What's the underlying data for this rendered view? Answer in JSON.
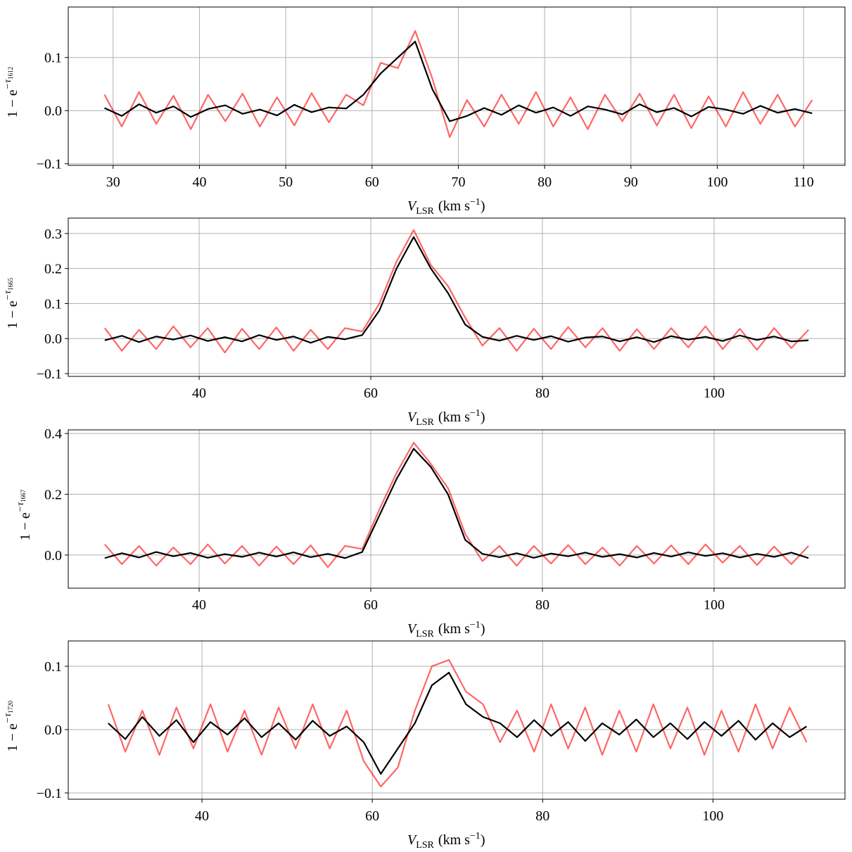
{
  "chart_data": [
    {
      "type": "line",
      "xlabel": {
        "symbol": "V",
        "subscript": "LSR",
        "unit": "(km s",
        "exponent": "−1",
        "close": ")"
      },
      "ylabel": {
        "base": "1 − e",
        "exponent": "−τ",
        "subscript": "1612"
      },
      "xlim": [
        24.8,
        114.8
      ],
      "xticks": [
        30,
        40,
        50,
        60,
        70,
        80,
        90,
        100,
        110
      ],
      "ylim": [
        -0.103,
        0.195
      ],
      "yticks": [
        {
          "value": -0.1,
          "label": "−0.1"
        },
        {
          "value": 0,
          "label": "0.0"
        },
        0.1
      ],
      "grid": true,
      "x": [
        29,
        31,
        33,
        35,
        37,
        39,
        41,
        43,
        45,
        47,
        49,
        51,
        53,
        55,
        57,
        59,
        61,
        63,
        65,
        67,
        69,
        71,
        73,
        75,
        77,
        79,
        81,
        83,
        85,
        87,
        89,
        91,
        93,
        95,
        97,
        99,
        101,
        103,
        105,
        107,
        109,
        111
      ],
      "series": [
        {
          "color": "#ff0000",
          "values": [
            0.03,
            -0.03,
            0.035,
            -0.025,
            0.028,
            -0.035,
            0.03,
            -0.02,
            0.032,
            -0.03,
            0.025,
            -0.028,
            0.033,
            -0.022,
            0.03,
            0.01,
            0.09,
            0.08,
            0.15,
            0.06,
            -0.05,
            0.02,
            -0.03,
            0.03,
            -0.025,
            0.035,
            -0.03,
            0.025,
            -0.035,
            0.03,
            -0.02,
            0.032,
            -0.028,
            0.03,
            -0.033,
            0.027,
            -0.03,
            0.035,
            -0.025,
            0.03,
            -0.03,
            0.02
          ]
        },
        {
          "color": "#000000",
          "values": [
            0.005,
            -0.01,
            0.012,
            -0.004,
            0.008,
            -0.012,
            0.003,
            0.01,
            -0.006,
            0.002,
            -0.009,
            0.011,
            -0.003,
            0.006,
            0.004,
            0.03,
            0.07,
            0.1,
            0.13,
            0.04,
            -0.02,
            -0.01,
            0.005,
            -0.008,
            0.01,
            -0.004,
            0.006,
            -0.01,
            0.008,
            0.002,
            -0.007,
            0.012,
            -0.003,
            0.005,
            -0.011,
            0.007,
            0.002,
            -0.006,
            0.009,
            -0.004,
            0.003,
            -0.005
          ]
        }
      ]
    },
    {
      "type": "line",
      "xlabel": {
        "symbol": "V",
        "subscript": "LSR",
        "unit": "(km s",
        "exponent": "−1",
        "close": ")"
      },
      "ylabel": {
        "base": "1 − e",
        "exponent": "−τ",
        "subscript": "1665"
      },
      "xlim": [
        24.75,
        115.25
      ],
      "xticks": [
        40,
        60,
        80,
        100
      ],
      "ylim": [
        -0.108,
        0.344
      ],
      "yticks": [
        {
          "value": -0.1,
          "label": "−0.1"
        },
        {
          "value": 0,
          "label": "0.0"
        },
        0.1,
        0.2,
        0.3
      ],
      "grid": true,
      "x": [
        29,
        31,
        33,
        35,
        37,
        39,
        41,
        43,
        45,
        47,
        49,
        51,
        53,
        55,
        57,
        59,
        61,
        63,
        65,
        67,
        69,
        71,
        73,
        75,
        77,
        79,
        81,
        83,
        85,
        87,
        89,
        91,
        93,
        95,
        97,
        99,
        101,
        103,
        105,
        107,
        109,
        111
      ],
      "series": [
        {
          "color": "#ff0000",
          "values": [
            0.03,
            -0.035,
            0.025,
            -0.03,
            0.035,
            -0.025,
            0.03,
            -0.04,
            0.028,
            -0.03,
            0.032,
            -0.035,
            0.025,
            -0.03,
            0.03,
            0.02,
            0.1,
            0.22,
            0.31,
            0.21,
            0.15,
            0.06,
            -0.02,
            0.03,
            -0.035,
            0.028,
            -0.03,
            0.033,
            -0.025,
            0.03,
            -0.035,
            0.027,
            -0.03,
            0.03,
            -0.025,
            0.035,
            -0.03,
            0.028,
            -0.032,
            0.03,
            -0.027,
            0.025
          ]
        },
        {
          "color": "#000000",
          "values": [
            -0.005,
            0.008,
            -0.01,
            0.006,
            -0.003,
            0.009,
            -0.007,
            0.004,
            -0.008,
            0.01,
            -0.004,
            0.006,
            -0.012,
            0.005,
            -0.002,
            0.01,
            0.08,
            0.2,
            0.29,
            0.2,
            0.13,
            0.04,
            0.005,
            -0.006,
            0.008,
            -0.004,
            0.007,
            -0.009,
            0.003,
            0.006,
            -0.008,
            0.004,
            -0.01,
            0.007,
            -0.003,
            0.005,
            -0.007,
            0.009,
            -0.004,
            0.006,
            -0.008,
            -0.005
          ]
        }
      ]
    },
    {
      "type": "line",
      "xlabel": {
        "symbol": "V",
        "subscript": "LSR",
        "unit": "(km s",
        "exponent": "−1",
        "close": ")"
      },
      "ylabel": {
        "base": "1 − e",
        "exponent": "−τ",
        "subscript": "1667"
      },
      "xlim": [
        24.75,
        115.25
      ],
      "xticks": [
        40,
        60,
        80,
        100
      ],
      "ylim": [
        -0.109,
        0.412
      ],
      "yticks": [
        {
          "value": 0,
          "label": "0.0"
        },
        {
          "value": 0.2,
          "label": "0.2"
        },
        {
          "value": 0.4,
          "label": "0.4"
        }
      ],
      "grid": true,
      "x": [
        29,
        31,
        33,
        35,
        37,
        39,
        41,
        43,
        45,
        47,
        49,
        51,
        53,
        55,
        57,
        59,
        61,
        63,
        65,
        67,
        69,
        71,
        73,
        75,
        77,
        79,
        81,
        83,
        85,
        87,
        89,
        91,
        93,
        95,
        97,
        99,
        101,
        103,
        105,
        107,
        109,
        111
      ],
      "series": [
        {
          "color": "#ff0000",
          "values": [
            0.035,
            -0.03,
            0.03,
            -0.035,
            0.025,
            -0.03,
            0.035,
            -0.028,
            0.03,
            -0.035,
            0.028,
            -0.03,
            0.032,
            -0.04,
            0.03,
            0.02,
            0.15,
            0.27,
            0.37,
            0.3,
            0.22,
            0.07,
            -0.02,
            0.03,
            -0.035,
            0.03,
            -0.028,
            0.033,
            -0.03,
            0.025,
            -0.035,
            0.03,
            -0.028,
            0.032,
            -0.03,
            0.035,
            -0.025,
            0.03,
            -0.033,
            0.028,
            -0.03,
            0.03
          ]
        },
        {
          "color": "#000000",
          "values": [
            -0.01,
            0.006,
            -0.008,
            0.01,
            -0.004,
            0.007,
            -0.009,
            0.003,
            -0.006,
            0.008,
            -0.005,
            0.009,
            -0.007,
            0.004,
            -0.01,
            0.01,
            0.13,
            0.25,
            0.35,
            0.29,
            0.2,
            0.05,
            0.004,
            -0.007,
            0.006,
            -0.009,
            0.005,
            -0.004,
            0.008,
            -0.006,
            0.003,
            -0.008,
            0.007,
            -0.005,
            0.009,
            -0.003,
            0.006,
            -0.008,
            0.004,
            -0.006,
            0.008,
            -0.01
          ]
        }
      ]
    },
    {
      "type": "line",
      "xlabel": {
        "symbol": "V",
        "subscript": "LSR",
        "unit": "(km s",
        "exponent": "−1",
        "close": ")"
      },
      "ylabel": {
        "base": "1 − e",
        "exponent": "−τ",
        "subscript": "1720"
      },
      "xlim": [
        24.3,
        115.5
      ],
      "xticks": [
        40,
        60,
        80,
        100
      ],
      "ylim": [
        -0.11,
        0.14
      ],
      "yticks": [
        {
          "value": -0.1,
          "label": "−0.1"
        },
        {
          "value": 0,
          "label": "0.0"
        },
        0.1
      ],
      "grid": true,
      "x": [
        29,
        31,
        33,
        35,
        37,
        39,
        41,
        43,
        45,
        47,
        49,
        51,
        53,
        55,
        57,
        59,
        61,
        63,
        65,
        67,
        69,
        71,
        73,
        75,
        77,
        79,
        81,
        83,
        85,
        87,
        89,
        91,
        93,
        95,
        97,
        99,
        101,
        103,
        105,
        107,
        109,
        111
      ],
      "series": [
        {
          "color": "#ff0000",
          "values": [
            0.04,
            -0.035,
            0.03,
            -0.04,
            0.035,
            -0.03,
            0.04,
            -0.035,
            0.03,
            -0.04,
            0.035,
            -0.03,
            0.04,
            -0.03,
            0.03,
            -0.05,
            -0.09,
            -0.06,
            0.03,
            0.1,
            0.11,
            0.06,
            0.04,
            -0.02,
            0.03,
            -0.035,
            0.04,
            -0.03,
            0.035,
            -0.04,
            0.03,
            -0.035,
            0.04,
            -0.03,
            0.035,
            -0.04,
            0.03,
            -0.035,
            0.04,
            -0.03,
            0.035,
            -0.02
          ]
        },
        {
          "color": "#000000",
          "values": [
            0.01,
            -0.015,
            0.02,
            -0.01,
            0.015,
            -0.02,
            0.012,
            -0.008,
            0.018,
            -0.012,
            0.01,
            -0.016,
            0.014,
            -0.01,
            0.005,
            -0.02,
            -0.07,
            -0.03,
            0.01,
            0.07,
            0.09,
            0.04,
            0.02,
            0.01,
            -0.012,
            0.015,
            -0.01,
            0.012,
            -0.018,
            0.01,
            -0.008,
            0.016,
            -0.012,
            0.01,
            -0.015,
            0.012,
            -0.01,
            0.014,
            -0.016,
            0.01,
            -0.012,
            0.005
          ]
        }
      ]
    }
  ]
}
